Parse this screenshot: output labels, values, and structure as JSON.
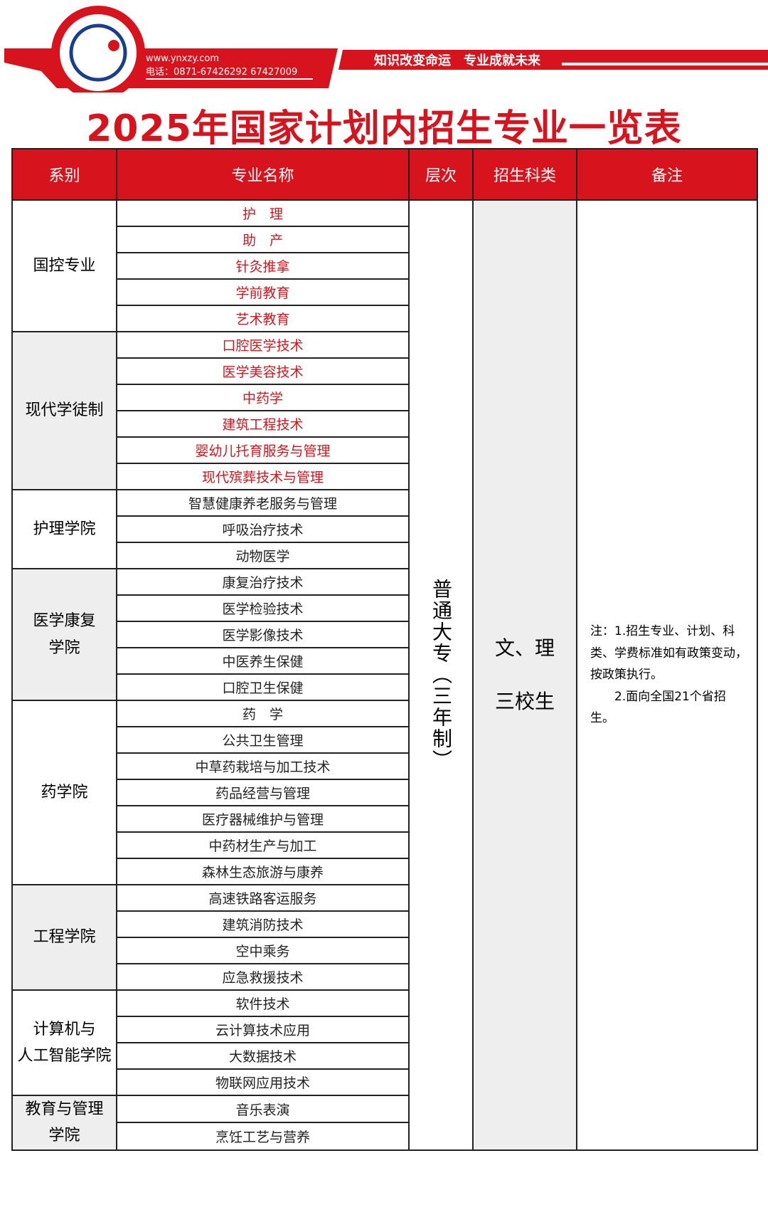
{
  "header": {
    "url": "www.ynxzy.com",
    "phone": "电话：0871-67426292 67427009",
    "slogan": "知识改变命运　专业成就未来"
  },
  "title": "2025年国家计划内招生专业一览表",
  "table": {
    "columns": [
      "系别",
      "专业名称",
      "层次",
      "招生科类",
      "备注"
    ],
    "groups": [
      {
        "dept": [
          "国控专业"
        ],
        "highlight": true,
        "majors": [
          "护　理",
          "助　产",
          "针灸推拿",
          "学前教育",
          "艺术教育"
        ]
      },
      {
        "dept": [
          "现代学徒制"
        ],
        "highlight": true,
        "majors": [
          "口腔医学技术",
          "医学美容技术",
          "中药学",
          "建筑工程技术",
          "婴幼儿托育服务与管理",
          "现代殡葬技术与管理"
        ]
      },
      {
        "dept": [
          "护理学院"
        ],
        "highlight": false,
        "majors": [
          "智慧健康养老服务与管理",
          "呼吸治疗技术",
          "动物医学"
        ]
      },
      {
        "dept": [
          "医学康复",
          "学院"
        ],
        "highlight": false,
        "majors": [
          "康复治疗技术",
          "医学检验技术",
          "医学影像技术",
          "中医养生保健",
          "口腔卫生保健"
        ]
      },
      {
        "dept": [
          "药学院"
        ],
        "highlight": false,
        "majors": [
          "药　学",
          "公共卫生管理",
          "中草药栽培与加工技术",
          "药品经营与管理",
          "医疗器械维护与管理",
          "中药材生产与加工",
          "森林生态旅游与康养"
        ]
      },
      {
        "dept": [
          "工程学院"
        ],
        "highlight": false,
        "majors": [
          "高速铁路客运服务",
          "建筑消防技术",
          "空中乘务",
          "应急救援技术"
        ]
      },
      {
        "dept": [
          "计算机与",
          "人工智能学院"
        ],
        "highlight": false,
        "majors": [
          "软件技术",
          "云计算技术应用",
          "大数据技术",
          "物联网应用技术"
        ]
      },
      {
        "dept": [
          "教育与管理",
          "学院"
        ],
        "highlight": false,
        "majors": [
          "音乐表演",
          "烹饪工艺与营养"
        ]
      }
    ],
    "level": "普通大专（三年制）",
    "category": [
      "文、理",
      "三校生"
    ],
    "notes": [
      "注：1.招生专业、计划、科类、学费标准如有政策变动，按政策执行。",
      "2.面向全国21个省招生。"
    ]
  }
}
